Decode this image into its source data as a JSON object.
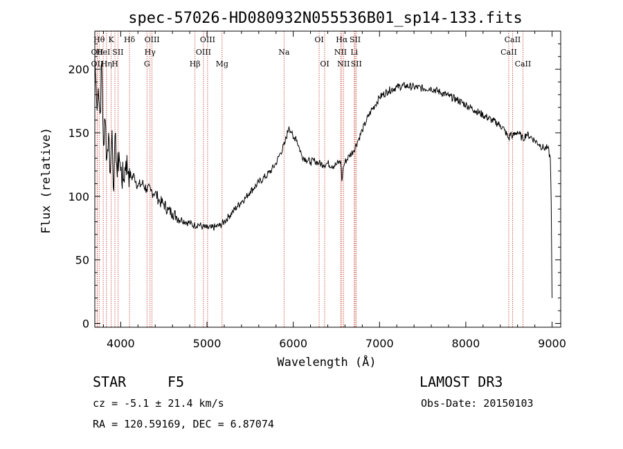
{
  "chart_data": {
    "type": "line",
    "title": "spec-57026-HD080932N055536B01_sp14-133.fits",
    "xlabel": "Wavelength (Å)",
    "ylabel": "Flux (relative)",
    "xlim": [
      3700,
      9100
    ],
    "ylim": [
      -3,
      230
    ],
    "x_ticks": [
      4000,
      5000,
      6000,
      7000,
      8000,
      9000
    ],
    "y_ticks": [
      0,
      50,
      100,
      150,
      200
    ],
    "grid": false,
    "series": [
      {
        "name": "flux",
        "x": [
          3700,
          3720,
          3740,
          3760,
          3780,
          3800,
          3820,
          3840,
          3860,
          3880,
          3900,
          3920,
          3940,
          3960,
          3980,
          4000,
          4030,
          4060,
          4090,
          4120,
          4160,
          4200,
          4250,
          4300,
          4350,
          4400,
          4450,
          4500,
          4550,
          4600,
          4650,
          4700,
          4750,
          4800,
          4850,
          4900,
          4950,
          5000,
          5050,
          5100,
          5150,
          5200,
          5250,
          5300,
          5350,
          5400,
          5450,
          5500,
          5550,
          5600,
          5650,
          5700,
          5750,
          5800,
          5850,
          5900,
          5950,
          5980,
          6000,
          6030,
          6060,
          6100,
          6150,
          6200,
          6250,
          6300,
          6350,
          6400,
          6450,
          6500,
          6550,
          6563,
          6580,
          6600,
          6650,
          6700,
          6750,
          6800,
          6850,
          6900,
          6950,
          7000,
          7100,
          7200,
          7300,
          7400,
          7500,
          7600,
          7700,
          7800,
          7900,
          8000,
          8100,
          8200,
          8300,
          8400,
          8450,
          8498,
          8520,
          8542,
          8600,
          8662,
          8700,
          8750,
          8800,
          8850,
          8900,
          8950,
          8980,
          8990,
          9000
        ],
        "y": [
          210,
          175,
          185,
          165,
          205,
          140,
          160,
          130,
          150,
          118,
          152,
          104,
          150,
          115,
          135,
          120,
          112,
          128,
          120,
          115,
          116,
          108,
          110,
          106,
          104,
          103,
          96,
          94,
          89,
          87,
          84,
          82,
          80,
          79,
          77,
          78,
          76,
          75,
          75,
          76,
          77,
          80,
          84,
          88,
          92,
          96,
          99,
          104,
          107,
          111,
          114,
          117,
          121,
          126,
          134,
          141,
          155,
          150,
          145,
          147,
          140,
          132,
          129,
          127,
          128,
          126,
          125,
          126,
          124,
          125,
          128,
          112,
          123,
          127,
          132,
          136,
          144,
          152,
          160,
          167,
          172,
          178,
          183,
          186,
          187,
          186,
          185,
          185,
          182,
          179,
          176,
          172,
          168,
          164,
          160,
          156,
          152,
          145,
          150,
          147,
          151,
          145,
          149,
          147,
          144,
          141,
          138,
          138,
          130,
          95,
          20
        ]
      }
    ],
    "spectral_lines": [
      {
        "x": 3727,
        "label": "OII",
        "row": 1
      },
      {
        "x": 3727,
        "label": "OII",
        "row": 2
      },
      {
        "x": 3750,
        "label": "Hθ",
        "row": 0
      },
      {
        "x": 3797,
        "label": "HeI",
        "row": 1
      },
      {
        "x": 3835,
        "label": "Hη",
        "row": 2
      },
      {
        "x": 3889,
        "label": "K",
        "row": 0
      },
      {
        "x": 3933,
        "label": "H",
        "row": 2
      },
      {
        "x": 3968,
        "label": "SII",
        "row": 1
      },
      {
        "x": 4102,
        "label": "Hδ",
        "row": 0
      },
      {
        "x": 4304,
        "label": "G",
        "row": 2
      },
      {
        "x": 4340,
        "label": "Hγ",
        "row": 1
      },
      {
        "x": 4363,
        "label": "OIII",
        "row": 0
      },
      {
        "x": 4861,
        "label": "Hβ",
        "row": 2
      },
      {
        "x": 4959,
        "label": "OIII",
        "row": 1
      },
      {
        "x": 5007,
        "label": "OIII",
        "row": 0
      },
      {
        "x": 5175,
        "label": "Mg",
        "row": 2
      },
      {
        "x": 5893,
        "label": "Na",
        "row": 1
      },
      {
        "x": 6300,
        "label": "OI",
        "row": 0
      },
      {
        "x": 6364,
        "label": "OI",
        "row": 2
      },
      {
        "x": 6548,
        "label": "NII",
        "row": 1
      },
      {
        "x": 6563,
        "label": "Hα",
        "row": 0
      },
      {
        "x": 6583,
        "label": "NII",
        "row": 2
      },
      {
        "x": 6707,
        "label": "Li",
        "row": 1
      },
      {
        "x": 6717,
        "label": "SII",
        "row": 0
      },
      {
        "x": 6731,
        "label": "SII",
        "row": 2
      },
      {
        "x": 8498,
        "label": "CaII",
        "row": 1
      },
      {
        "x": 8542,
        "label": "CaII",
        "row": 0
      },
      {
        "x": 8662,
        "label": "CaII",
        "row": 2
      }
    ]
  },
  "info": {
    "object_class": "STAR",
    "subclass": "F5",
    "survey": "LAMOST DR3",
    "cz": "cz = -5.1 ± 21.4 km/s",
    "obs_date": "Obs-Date: 20150103",
    "coords": "RA = 120.59169, DEC =   6.87074"
  }
}
